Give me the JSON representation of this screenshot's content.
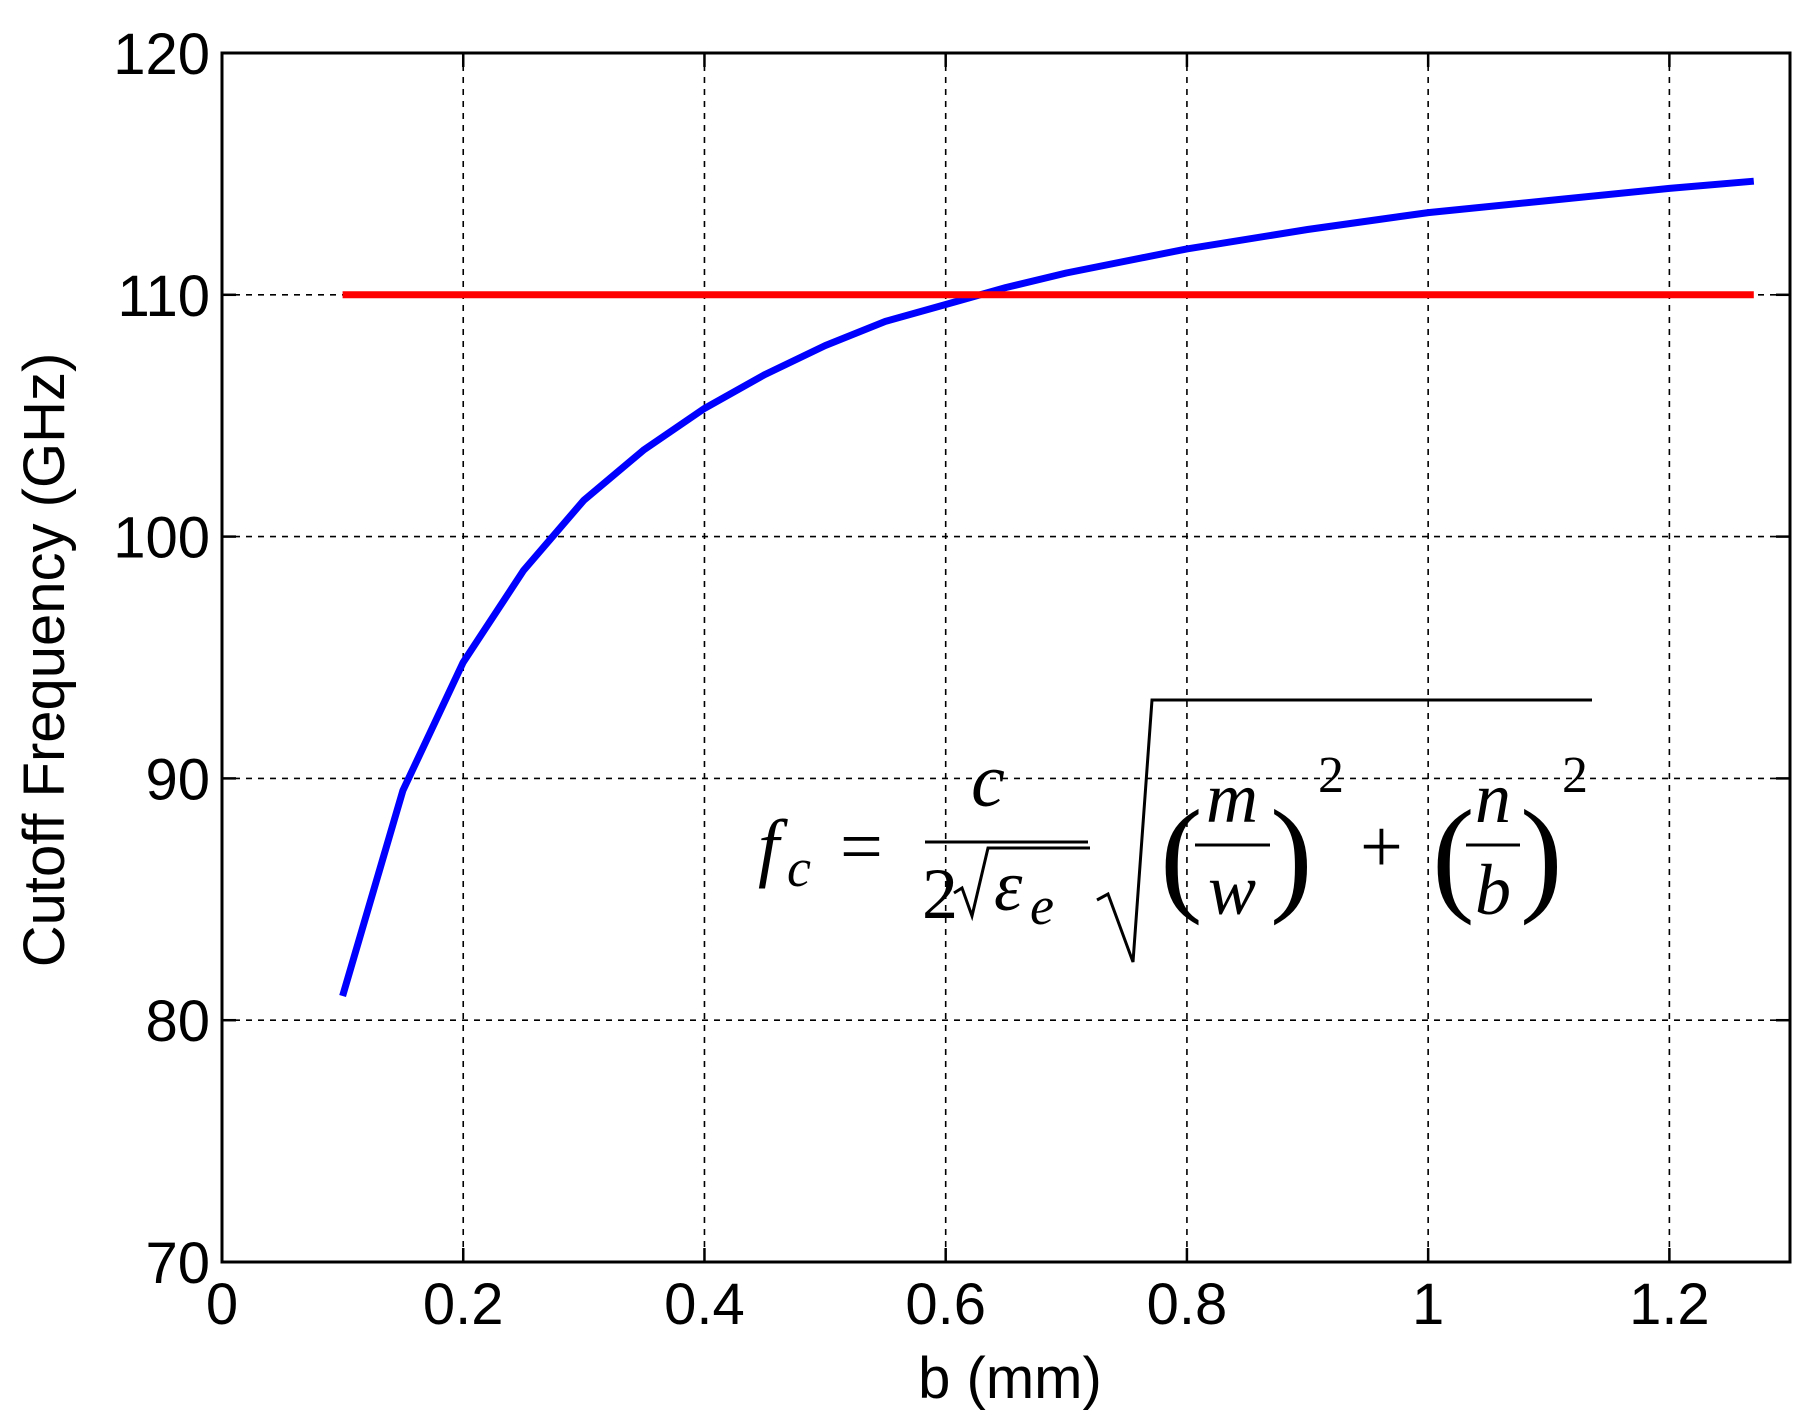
{
  "chart_data": {
    "type": "line",
    "xlabel": "b (mm)",
    "ylabel": "Cutoff Frequency (GHz)",
    "xlim": [
      0,
      1.3
    ],
    "ylim": [
      70,
      120
    ],
    "xticks": [
      "0",
      "0.2",
      "0.4",
      "0.6",
      "0.8",
      "1",
      "1.2"
    ],
    "xtick_values": [
      0,
      0.2,
      0.4,
      0.6,
      0.8,
      1.0,
      1.2
    ],
    "yticks": [
      "70",
      "80",
      "90",
      "100",
      "110",
      "120"
    ],
    "ytick_values": [
      70,
      80,
      90,
      100,
      110,
      120
    ],
    "grid": true,
    "series": [
      {
        "color": "#0000ff",
        "x": [
          0.1,
          0.15,
          0.2,
          0.25,
          0.3,
          0.35,
          0.4,
          0.45,
          0.5,
          0.55,
          0.6,
          0.65,
          0.7,
          0.8,
          0.9,
          1.0,
          1.1,
          1.2,
          1.27
        ],
        "y": [
          81.0,
          89.5,
          94.8,
          98.6,
          101.5,
          103.6,
          105.3,
          106.7,
          107.9,
          108.9,
          109.6,
          110.3,
          110.9,
          111.9,
          112.7,
          113.4,
          113.9,
          114.4,
          114.7
        ]
      },
      {
        "color": "#ff0000",
        "x": [
          0.1,
          1.27
        ],
        "y": [
          110,
          110
        ]
      }
    ],
    "annotations": {
      "formula": {
        "lhs_f": "f",
        "lhs_sub": "c",
        "eq": "=",
        "num": "c",
        "den_two": "2",
        "den_eps": "ε",
        "den_eps_sub": "e",
        "m": "m",
        "w": "w",
        "exp1": "2",
        "plus": "+",
        "n": "n",
        "b": "b",
        "exp2": "2"
      }
    }
  }
}
